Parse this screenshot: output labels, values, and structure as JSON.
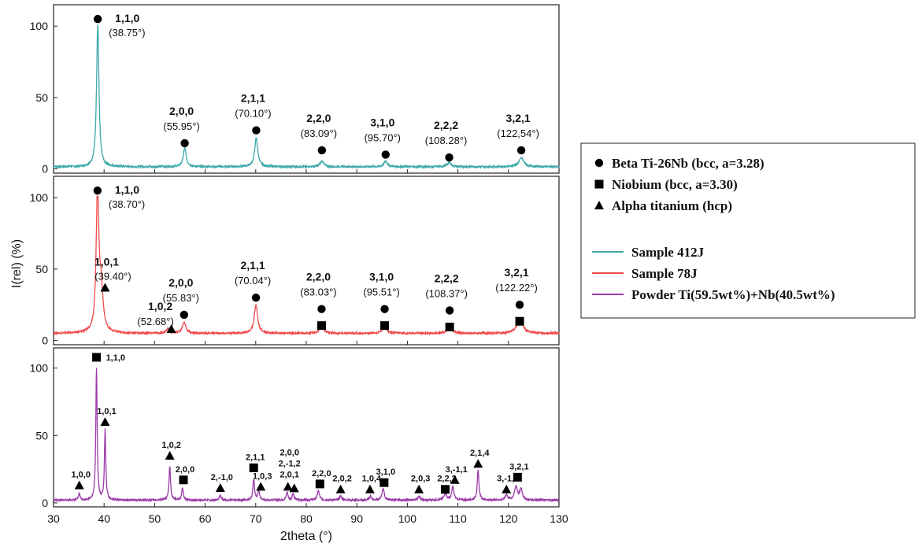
{
  "chart_data": {
    "type": "line",
    "xlabel": "2theta (°)",
    "ylabel": "I(rel) (%)",
    "xlim": [
      30,
      130
    ],
    "ylim": [
      -3,
      115
    ],
    "x_ticks": [
      30,
      40,
      50,
      60,
      70,
      80,
      90,
      100,
      110,
      120,
      130
    ],
    "y_ticks": [
      0,
      50,
      100
    ],
    "grid": false,
    "legend_position": "right",
    "markers_legend": [
      {
        "shape": "circle",
        "label": "Beta Ti-26Nb (bcc, a=3.28)"
      },
      {
        "shape": "square",
        "label": "Niobium (bcc, a=3.30)"
      },
      {
        "shape": "triangle",
        "label": "Alpha titanium (hcp)"
      }
    ],
    "series": [
      {
        "name": "Sample 412J",
        "color": "#3ea8aa",
        "baseline": 1.5,
        "peaks": [
          {
            "x": 38.75,
            "h": 100,
            "w": 0.28
          },
          {
            "x": 55.95,
            "h": 13,
            "w": 0.35
          },
          {
            "x": 70.1,
            "h": 20,
            "w": 0.38
          },
          {
            "x": 83.09,
            "h": 4,
            "w": 0.4
          },
          {
            "x": 95.7,
            "h": 4,
            "w": 0.4
          },
          {
            "x": 108.28,
            "h": 3,
            "w": 0.45
          },
          {
            "x": 122.54,
            "h": 6,
            "w": 0.6
          }
        ],
        "annotations": [
          {
            "hkl": "1,1,0",
            "angle": "(38.75°)",
            "x": 38.75,
            "y": 105,
            "marker": "circle"
          },
          {
            "hkl": "2,0,0",
            "angle": "(55.95°)",
            "x": 55.95,
            "y": 18,
            "marker": "circle"
          },
          {
            "hkl": "2,1,1",
            "angle": "(70.10°)",
            "x": 70.1,
            "y": 27,
            "marker": "circle"
          },
          {
            "hkl": "2,2,0",
            "angle": "(83.09°)",
            "x": 83.09,
            "y": 13,
            "marker": "circle"
          },
          {
            "hkl": "3,1,0",
            "angle": "(95.70°)",
            "x": 95.7,
            "y": 10,
            "marker": "circle"
          },
          {
            "hkl": "2,2,2",
            "angle": "(108.28°)",
            "x": 108.28,
            "y": 8,
            "marker": "circle"
          },
          {
            "hkl": "3,2,1",
            "angle": "(122,54°)",
            "x": 122.54,
            "y": 13,
            "marker": "circle"
          }
        ]
      },
      {
        "name": "Sample 78J",
        "color": "#f04a4a",
        "baseline": 5,
        "peaks": [
          {
            "x": 38.7,
            "h": 100,
            "w": 0.3
          },
          {
            "x": 39.4,
            "h": 30,
            "w": 0.45
          },
          {
            "x": 52.68,
            "h": 3,
            "w": 0.4
          },
          {
            "x": 55.83,
            "h": 8,
            "w": 0.4
          },
          {
            "x": 70.04,
            "h": 20,
            "w": 0.4
          },
          {
            "x": 83.03,
            "h": 6,
            "w": 0.45
          },
          {
            "x": 95.51,
            "h": 6,
            "w": 0.45
          },
          {
            "x": 108.37,
            "h": 5,
            "w": 0.5
          },
          {
            "x": 122.22,
            "h": 10,
            "w": 0.7
          }
        ],
        "annotations": [
          {
            "hkl": "1,1,0",
            "angle": "(38.70°)",
            "x": 38.7,
            "y": 105,
            "marker": "circle"
          },
          {
            "hkl": "1,0,1",
            "angle": "(39.40°)",
            "x": 40.2,
            "y": 37,
            "marker": "triangle"
          },
          {
            "hkl": "1,0,2",
            "angle": "(52.68°)",
            "x": 53.3,
            "y": 8,
            "marker": "triangle"
          },
          {
            "hkl": "2,0,0",
            "angle": "(55.83°)",
            "x": 55.83,
            "y": 18,
            "marker": "circle"
          },
          {
            "hkl": "2,1,1",
            "angle": "(70.04°)",
            "x": 70.04,
            "y": 30,
            "marker": "circle"
          },
          {
            "hkl": "2,2,0",
            "angle": "(83.03°)",
            "x": 83.03,
            "y": 22,
            "marker": "circle",
            "extra_marker": "square"
          },
          {
            "hkl": "3,1,0",
            "angle": "(95.51°)",
            "x": 95.51,
            "y": 22,
            "marker": "circle",
            "extra_marker": "square"
          },
          {
            "hkl": "2,2,2",
            "angle": "(108.37°)",
            "x": 108.37,
            "y": 21,
            "marker": "circle",
            "extra_marker": "square"
          },
          {
            "hkl": "3,2,1",
            "angle": "(122.22°)",
            "x": 122.22,
            "y": 25,
            "marker": "circle",
            "extra_marker": "square"
          }
        ]
      },
      {
        "name": "Powder Ti(59.5wt%)+Nb(40.5wt%)",
        "color": "#9b3aa8",
        "baseline": 2,
        "peaks": [
          {
            "x": 35.1,
            "h": 5,
            "w": 0.18
          },
          {
            "x": 38.5,
            "h": 98,
            "w": 0.16
          },
          {
            "x": 40.2,
            "h": 52,
            "w": 0.16
          },
          {
            "x": 53.0,
            "h": 25,
            "w": 0.18
          },
          {
            "x": 55.5,
            "h": 9,
            "w": 0.18
          },
          {
            "x": 63.0,
            "h": 4,
            "w": 0.2
          },
          {
            "x": 69.6,
            "h": 15,
            "w": 0.2
          },
          {
            "x": 70.6,
            "h": 7,
            "w": 0.2
          },
          {
            "x": 76.2,
            "h": 6,
            "w": 0.2
          },
          {
            "x": 77.4,
            "h": 5,
            "w": 0.2
          },
          {
            "x": 82.4,
            "h": 7,
            "w": 0.25
          },
          {
            "x": 86.8,
            "h": 3,
            "w": 0.25
          },
          {
            "x": 92.7,
            "h": 3,
            "w": 0.25
          },
          {
            "x": 95.2,
            "h": 9,
            "w": 0.25
          },
          {
            "x": 102.3,
            "h": 3,
            "w": 0.25
          },
          {
            "x": 107.5,
            "h": 5,
            "w": 0.3
          },
          {
            "x": 109.0,
            "h": 10,
            "w": 0.25
          },
          {
            "x": 114.0,
            "h": 22,
            "w": 0.2
          },
          {
            "x": 119.6,
            "h": 4,
            "w": 0.25
          },
          {
            "x": 121.5,
            "h": 10,
            "w": 0.35
          },
          {
            "x": 122.5,
            "h": 8,
            "w": 0.3
          }
        ],
        "annotations": [
          {
            "hkl": "1,0,0",
            "x": 35.1,
            "y": 13,
            "marker": "triangle"
          },
          {
            "hkl": "1,1,0",
            "x": 38.5,
            "y": 108,
            "marker": "square",
            "label_side": "right"
          },
          {
            "hkl": "1,0,1",
            "x": 40.2,
            "y": 60,
            "marker": "triangle"
          },
          {
            "hkl": "1,0,2",
            "x": 53.0,
            "y": 35,
            "marker": "triangle"
          },
          {
            "hkl": "2,0,0",
            "x": 55.7,
            "y": 17,
            "marker": "square"
          },
          {
            "hkl": "2,-1,0",
            "x": 63.0,
            "y": 11,
            "marker": "triangle"
          },
          {
            "hkl": "2,1,1",
            "x": 69.6,
            "y": 26,
            "marker": "square"
          },
          {
            "hkl": "1,0,3",
            "x": 71.0,
            "y": 12,
            "marker": "triangle"
          },
          {
            "hkl": "2,0,0\n2,-1,2\n2,0,1",
            "x": 77.0,
            "y": 12,
            "marker": "triangle",
            "double": true
          },
          {
            "hkl": "2,2,0",
            "x": 82.7,
            "y": 14,
            "marker": "square"
          },
          {
            "hkl": "2,0,2",
            "x": 86.8,
            "y": 10,
            "marker": "triangle"
          },
          {
            "hkl": "1,0,4",
            "x": 92.6,
            "y": 10,
            "marker": "triangle"
          },
          {
            "hkl": "3,1,0",
            "x": 95.4,
            "y": 15,
            "marker": "square"
          },
          {
            "hkl": "2,0,3",
            "x": 102.3,
            "y": 10,
            "marker": "triangle"
          },
          {
            "hkl": "2,2,2",
            "x": 107.5,
            "y": 10,
            "marker": "square"
          },
          {
            "hkl": "3,-1,1",
            "x": 109.4,
            "y": 17,
            "marker": "triangle"
          },
          {
            "hkl": "2,1,4",
            "x": 114.0,
            "y": 29,
            "marker": "triangle"
          },
          {
            "hkl": "3,-1,2",
            "x": 119.6,
            "y": 10,
            "marker": "triangle"
          },
          {
            "hkl": "3,2,1",
            "x": 121.8,
            "y": 19,
            "marker": "square"
          }
        ]
      }
    ]
  }
}
